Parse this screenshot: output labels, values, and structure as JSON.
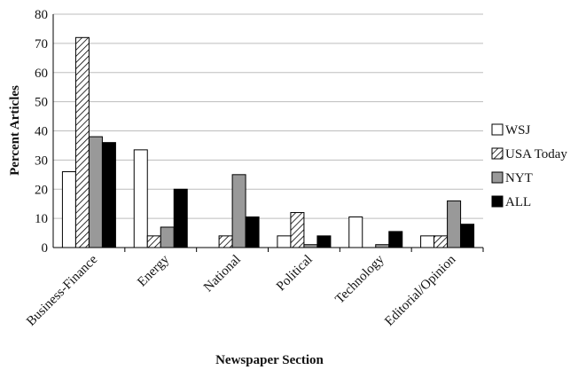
{
  "chart_data": {
    "type": "bar",
    "title": "",
    "xlabel": "Newspaper Section",
    "ylabel": "Percent Articles",
    "ylim": [
      0,
      80
    ],
    "yticks": [
      "0",
      "10",
      "20",
      "30",
      "40",
      "50",
      "60",
      "70",
      "80"
    ],
    "grid": "horizontal",
    "legend_position": "right",
    "categories": [
      "Business-Finance",
      "Energy",
      "National",
      "Political",
      "Technology",
      "Editorial/Opinion"
    ],
    "series": [
      {
        "name": "WSJ",
        "pattern": "white",
        "values": [
          26,
          33.5,
          0,
          4,
          10.5,
          4
        ]
      },
      {
        "name": "USA Today",
        "pattern": "diagonal-hatch",
        "values": [
          72,
          4,
          4,
          12,
          0,
          4
        ]
      },
      {
        "name": "NYT",
        "pattern": "gray",
        "values": [
          38,
          7,
          25,
          1,
          1,
          16
        ]
      },
      {
        "name": "ALL",
        "pattern": "black",
        "values": [
          36,
          20,
          10.5,
          4,
          5.5,
          8
        ]
      }
    ],
    "colors": {
      "white": "#ffffff",
      "gray": "#999999",
      "black": "#000000",
      "outline": "#000000",
      "grid": "#bdbdbd"
    }
  }
}
